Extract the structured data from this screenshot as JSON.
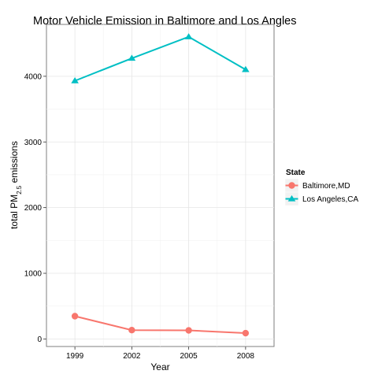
{
  "chart_data": {
    "type": "line",
    "title": "Motor Vehicle Emission in Baltimore and Los Angles",
    "xlabel": "Year",
    "ylabel_main": "total PM",
    "ylabel_sub": "2.5",
    "ylabel_rest": " emissions",
    "x": [
      1999,
      2002,
      2005,
      2008
    ],
    "xticks": [
      "1999",
      "2002",
      "2005",
      "2008"
    ],
    "yticks": [
      0,
      1000,
      2000,
      3000,
      4000
    ],
    "yticks_labels": [
      "0",
      "1000",
      "2000",
      "3000",
      "4000"
    ],
    "xlim": [
      1997.5,
      2009.5
    ],
    "ylim": [
      -115,
      4790
    ],
    "grid": true,
    "legend": {
      "title": "State",
      "placement": "right"
    },
    "series": [
      {
        "name": "Baltimore,MD",
        "color": "#F8766D",
        "marker": "circle",
        "values": [
          346.8,
          134.3,
          130.4,
          88.3
        ]
      },
      {
        "name": "Los Angeles,CA",
        "color": "#00BFC4",
        "marker": "triangle",
        "values": [
          3931.1,
          4274.0,
          4601.4,
          4101.3
        ]
      }
    ]
  }
}
